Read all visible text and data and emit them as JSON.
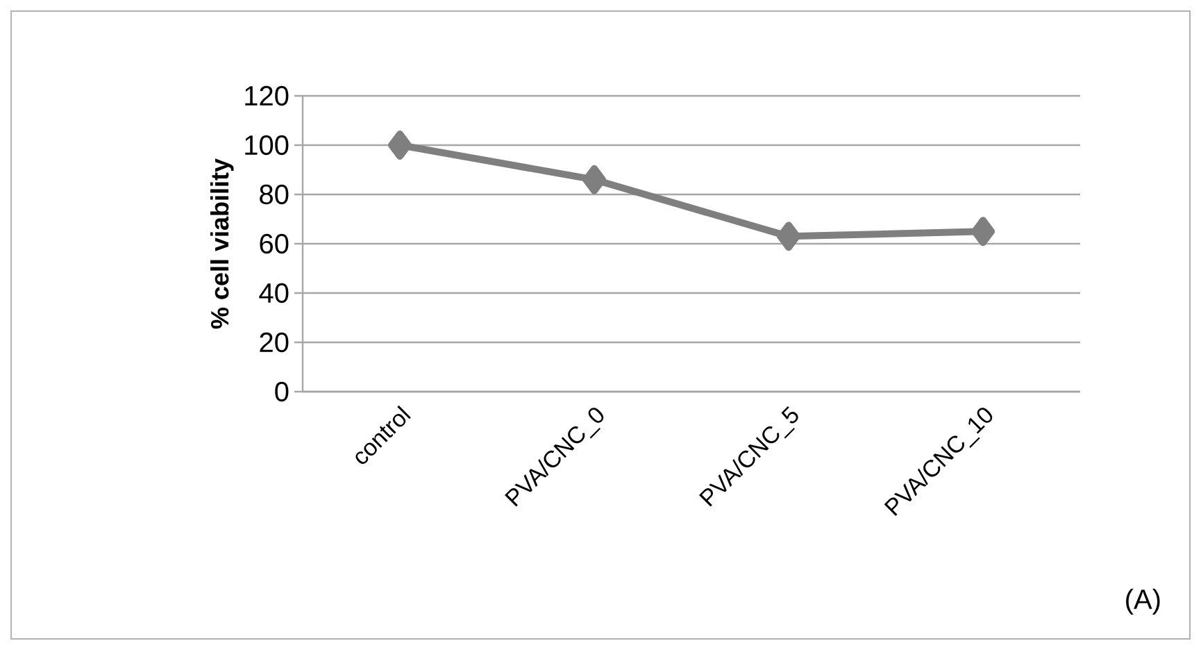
{
  "chart_data": {
    "type": "line",
    "ylabel": "% cell viability",
    "categories": [
      "control",
      "PVA/CNC_0",
      "PVA/CNC_5",
      "PVA/CNC_10"
    ],
    "series": [
      {
        "color": "#7f7f7f",
        "values": [
          100,
          86,
          63,
          65
        ]
      }
    ],
    "ylim": [
      0,
      120
    ],
    "yticks": [
      0,
      20,
      40,
      60,
      80,
      100,
      120
    ],
    "grid": "y",
    "marker": "diamond",
    "line_style": "solid",
    "annotations": [
      "(A)"
    ]
  }
}
